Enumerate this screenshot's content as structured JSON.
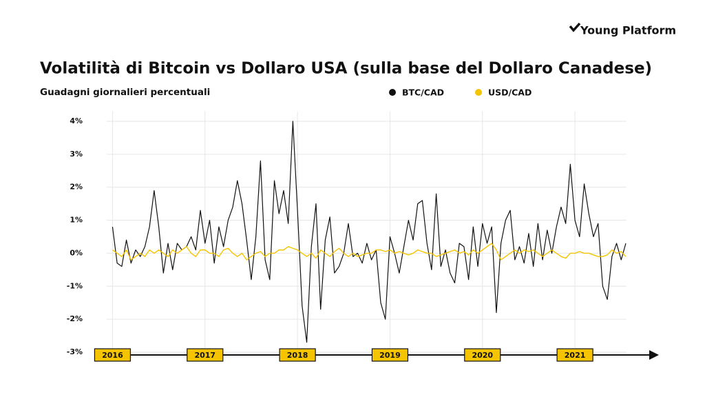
{
  "brand": "Young Platform",
  "chart_data": {
    "type": "line",
    "title": "Volatilità di Bitcoin vs Dollaro USA (sulla base del Dollaro Canadese)",
    "subtitle": "Guadagni giornalieri percentuali",
    "legend": "top-right",
    "grid": true,
    "x": [
      2016,
      2016.05,
      2016.1,
      2016.15,
      2016.2,
      2016.25,
      2016.3,
      2016.35,
      2016.4,
      2016.45,
      2016.5,
      2016.55,
      2016.6,
      2016.65,
      2016.7,
      2016.75,
      2016.8,
      2016.85,
      2016.9,
      2016.95,
      2017,
      2017.05,
      2017.1,
      2017.15,
      2017.2,
      2017.25,
      2017.3,
      2017.35,
      2017.4,
      2017.45,
      2017.5,
      2017.55,
      2017.6,
      2017.65,
      2017.7,
      2017.75,
      2017.8,
      2017.85,
      2017.9,
      2017.95,
      2018,
      2018.05,
      2018.1,
      2018.15,
      2018.2,
      2018.25,
      2018.3,
      2018.35,
      2018.4,
      2018.45,
      2018.5,
      2018.55,
      2018.6,
      2018.65,
      2018.7,
      2018.75,
      2018.8,
      2018.85,
      2018.9,
      2018.95,
      2019,
      2019.05,
      2019.1,
      2019.15,
      2019.2,
      2019.25,
      2019.3,
      2019.35,
      2019.4,
      2019.45,
      2019.5,
      2019.55,
      2019.6,
      2019.65,
      2019.7,
      2019.75,
      2019.8,
      2019.85,
      2019.9,
      2019.95,
      2020,
      2020.05,
      2020.1,
      2020.15,
      2020.2,
      2020.25,
      2020.3,
      2020.35,
      2020.4,
      2020.45,
      2020.5,
      2020.55,
      2020.6,
      2020.65,
      2020.7,
      2020.75,
      2020.8,
      2020.85,
      2020.9,
      2020.95,
      2021,
      2021.05,
      2021.1,
      2021.15,
      2021.2,
      2021.25,
      2021.3,
      2021.35,
      2021.4,
      2021.45,
      2021.5,
      2021.55
    ],
    "series": [
      {
        "name": "BTC/CAD",
        "color": "#111111",
        "values": [
          0.8,
          -0.3,
          -0.4,
          0.4,
          -0.3,
          0.1,
          -0.1,
          0.2,
          0.8,
          1.9,
          0.8,
          -0.6,
          0.3,
          -0.5,
          0.3,
          0.1,
          0.2,
          0.5,
          0.1,
          1.3,
          0.3,
          1.0,
          -0.3,
          0.8,
          0.2,
          1.0,
          1.4,
          2.2,
          1.5,
          0.4,
          -0.8,
          0.5,
          2.8,
          -0.2,
          -0.8,
          2.2,
          1.2,
          1.9,
          0.9,
          4.0,
          1.3,
          -1.6,
          -2.7,
          0.2,
          1.5,
          -1.7,
          0.4,
          1.1,
          -0.6,
          -0.4,
          0.0,
          0.9,
          -0.1,
          0.0,
          -0.3,
          0.3,
          -0.2,
          0.1,
          -1.5,
          -2.0,
          0.5,
          0.0,
          -0.6,
          0.2,
          1.0,
          0.4,
          1.5,
          1.6,
          0.3,
          -0.5,
          1.8,
          -0.4,
          0.1,
          -0.6,
          -0.9,
          0.3,
          0.2,
          -0.8,
          0.8,
          -0.4,
          0.9,
          0.3,
          0.8,
          -1.8,
          0.3,
          1.0,
          1.3,
          -0.2,
          0.2,
          -0.3,
          0.6,
          -0.4,
          0.9,
          -0.2,
          0.7,
          0.0,
          0.8,
          1.4,
          0.9,
          2.7,
          1.0,
          0.5,
          2.1,
          1.2,
          0.5,
          0.9,
          -1.0,
          -1.4,
          -0.1,
          0.3,
          -0.2,
          0.3
        ]
      },
      {
        "name": "USD/CAD",
        "color": "#f5c400",
        "values": [
          0.1,
          0.0,
          -0.1,
          0.1,
          -0.2,
          -0.1,
          0.0,
          -0.1,
          0.1,
          0.0,
          0.1,
          0.0,
          -0.1,
          0.1,
          0.0,
          0.1,
          0.2,
          0.0,
          -0.1,
          0.1,
          0.1,
          0.0,
          0.0,
          -0.1,
          0.1,
          0.15,
          0.0,
          -0.1,
          0.0,
          -0.2,
          -0.1,
          0.0,
          0.05,
          -0.1,
          0.0,
          0.0,
          0.1,
          0.1,
          0.2,
          0.15,
          0.1,
          0.0,
          -0.1,
          0.0,
          -0.15,
          0.1,
          0.0,
          -0.1,
          0.05,
          0.15,
          0.0,
          -0.1,
          0.0,
          -0.1,
          -0.05,
          0.0,
          0.0,
          0.1,
          0.1,
          0.05,
          0.1,
          0.0,
          0.05,
          0.0,
          -0.05,
          0.0,
          0.1,
          0.05,
          0.0,
          0.0,
          -0.1,
          -0.05,
          0.0,
          0.05,
          0.1,
          0.0,
          0.05,
          -0.05,
          0.1,
          0.0,
          0.1,
          0.2,
          0.3,
          0.1,
          -0.2,
          -0.1,
          0.0,
          0.1,
          0.0,
          0.1,
          0.05,
          0.1,
          0.0,
          -0.1,
          0.0,
          0.1,
          0.0,
          -0.1,
          -0.15,
          0.0,
          0.0,
          0.05,
          0.0,
          0.0,
          -0.05,
          -0.1,
          -0.1,
          -0.05,
          0.1,
          0.0,
          0.05,
          -0.1
        ]
      }
    ],
    "xlim": [
      2015.9,
      2021.9
    ],
    "xticks": [
      2016,
      2017,
      2018,
      2019,
      2020,
      2021
    ],
    "ylim": [
      -3,
      4.3
    ],
    "yticks": [
      {
        "value": -3,
        "label": "-3%"
      },
      {
        "value": -2,
        "label": "-2%"
      },
      {
        "value": -1,
        "label": "-1%"
      },
      {
        "value": 0,
        "label": "0%"
      },
      {
        "value": 1,
        "label": "1%"
      },
      {
        "value": 2,
        "label": "2%"
      },
      {
        "value": 3,
        "label": "3%"
      },
      {
        "value": 4,
        "label": "4%"
      }
    ]
  }
}
